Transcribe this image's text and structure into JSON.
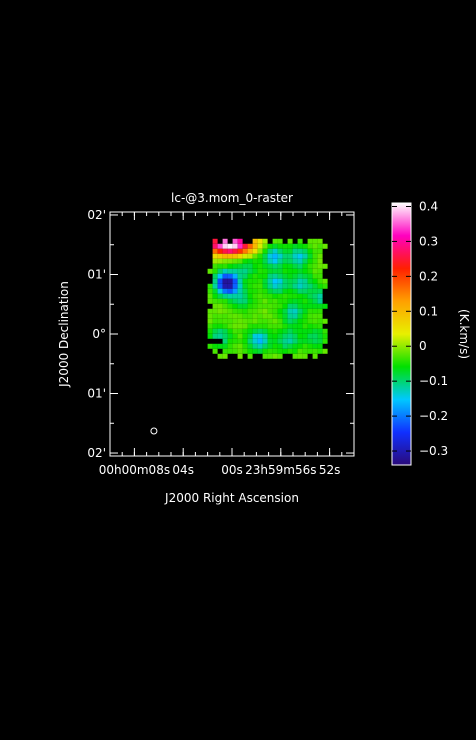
{
  "chart_data": {
    "type": "heatmap",
    "title": "lc-@3.mom_0-raster",
    "xlabel": "J2000 Right Ascension",
    "ylabel": "J2000 Declination",
    "x_ticks": [
      {
        "label": "00h00m08s",
        "ra_sec_from_midnight": 8
      },
      {
        "label": "04s",
        "ra_sec_from_midnight": 4
      },
      {
        "label": "00s",
        "ra_sec_from_midnight": 0
      },
      {
        "label": "23h59m56s",
        "ra_sec_from_midnight": -4
      },
      {
        "label": "52s",
        "ra_sec_from_midnight": -8
      }
    ],
    "xlim": [
      10,
      -10
    ],
    "y_ticks": [
      {
        "label": "02'",
        "dec_arcmin_offset": 2
      },
      {
        "label": "01'",
        "dec_arcmin_offset": 1
      },
      {
        "label": "0°",
        "dec_arcmin_offset": 0
      },
      {
        "label": "01'",
        "dec_arcmin_offset": -1
      },
      {
        "label": "02'",
        "dec_arcmin_offset": -2
      }
    ],
    "ylim": [
      -2.05,
      2.05
    ],
    "colorbar": {
      "label": "(K.km/s)",
      "range": [
        -0.34,
        0.41
      ],
      "ticks": [
        0.4,
        0.3,
        0.2,
        0.1,
        0,
        -0.1,
        -0.2,
        -0.3
      ],
      "tick_labels": [
        "0.4",
        "0.3",
        "0.2",
        "0.1",
        "0",
        "−0.1",
        "−0.2",
        "−0.3"
      ],
      "colormap": [
        "#2a0a7a",
        "#1030ff",
        "#00c8ff",
        "#00e000",
        "#e8f000",
        "#ffa000",
        "#ff2000",
        "#ff00c0",
        "#ffffff"
      ]
    },
    "map_region": {
      "ra_sec": [
        2,
        -8
      ],
      "dec_arcmin": [
        -0.4,
        1.6
      ],
      "baseline": -0.02
    },
    "features": [
      {
        "ra": 0.2,
        "dec": 1.5,
        "peak": 0.42,
        "kind": "emission"
      },
      {
        "ra": 0.4,
        "dec": 0.85,
        "peak": -0.33,
        "kind": "absorption"
      },
      {
        "ra": -3.4,
        "dec": 1.3,
        "peak": -0.16,
        "kind": "absorption"
      },
      {
        "ra": -5.5,
        "dec": 1.3,
        "peak": -0.14,
        "kind": "absorption"
      },
      {
        "ra": -3.6,
        "dec": 0.85,
        "peak": -0.15,
        "kind": "absorption"
      },
      {
        "ra": -5.7,
        "dec": 0.85,
        "peak": -0.13,
        "kind": "absorption"
      },
      {
        "ra": -5.0,
        "dec": 0.35,
        "peak": -0.13,
        "kind": "absorption"
      },
      {
        "ra": -7.2,
        "dec": 0.6,
        "peak": -0.11,
        "kind": "absorption"
      },
      {
        "ra": -0.8,
        "dec": 0.6,
        "peak": -0.1,
        "kind": "absorption"
      },
      {
        "ra": 1.0,
        "dec": -0.05,
        "peak": -0.12,
        "kind": "absorption"
      },
      {
        "ra": -2.2,
        "dec": -0.1,
        "peak": -0.16,
        "kind": "absorption"
      },
      {
        "ra": -4.6,
        "dec": -0.1,
        "peak": -0.12,
        "kind": "absorption"
      },
      {
        "ra": -6.8,
        "dec": -0.05,
        "peak": -0.1,
        "kind": "absorption"
      },
      {
        "ra": -1.2,
        "dec": 1.1,
        "peak": -0.1,
        "kind": "absorption"
      }
    ],
    "beam": {
      "ra": 6.4,
      "dec": -1.63
    },
    "grid": false
  }
}
